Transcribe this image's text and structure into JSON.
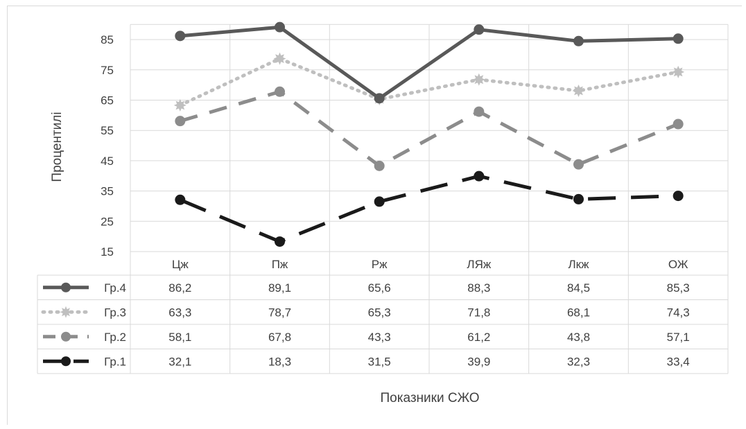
{
  "chart_data": {
    "type": "line",
    "xlabel": "Показники СЖО",
    "ylabel": "Процентилі",
    "ylim": [
      15,
      90
    ],
    "yticks": [
      15,
      25,
      35,
      45,
      55,
      65,
      75,
      85
    ],
    "grid": true,
    "legend_placement": "data-table-left",
    "categories": [
      "Цж",
      "Пж",
      "Рж",
      "ЛЯж",
      "Лкж",
      "ОЖ"
    ],
    "series": [
      {
        "name": "Гр.4",
        "values": [
          86.2,
          89.1,
          65.6,
          88.3,
          84.5,
          85.3
        ],
        "display": [
          "86,2",
          "89,1",
          "65,6",
          "88,3",
          "84,5",
          "85,3"
        ],
        "color": "#595959",
        "line_style": "solid",
        "marker": "circle"
      },
      {
        "name": "Гр.3",
        "values": [
          63.3,
          78.7,
          65.3,
          71.8,
          68.1,
          74.3
        ],
        "display": [
          "63,3",
          "78,7",
          "65,3",
          "71,8",
          "68,1",
          "74,3"
        ],
        "color": "#bfbfbf",
        "line_style": "dotted",
        "marker": "starburst"
      },
      {
        "name": "Гр.2",
        "values": [
          58.1,
          67.8,
          43.3,
          61.2,
          43.8,
          57.1
        ],
        "display": [
          "58,1",
          "67,8",
          "43,3",
          "61,2",
          "43,8",
          "57,1"
        ],
        "color": "#8c8c8c",
        "line_style": "dashed",
        "marker": "circle"
      },
      {
        "name": "Гр.1",
        "values": [
          32.1,
          18.3,
          31.5,
          39.9,
          32.3,
          33.4
        ],
        "display": [
          "32,1",
          "18,3",
          "31,5",
          "39,9",
          "32,3",
          "33,4"
        ],
        "color": "#1a1a1a",
        "line_style": "long-dash",
        "marker": "circle"
      }
    ]
  },
  "colors": {
    "grid": "#d9d9d9",
    "text": "#404040"
  }
}
